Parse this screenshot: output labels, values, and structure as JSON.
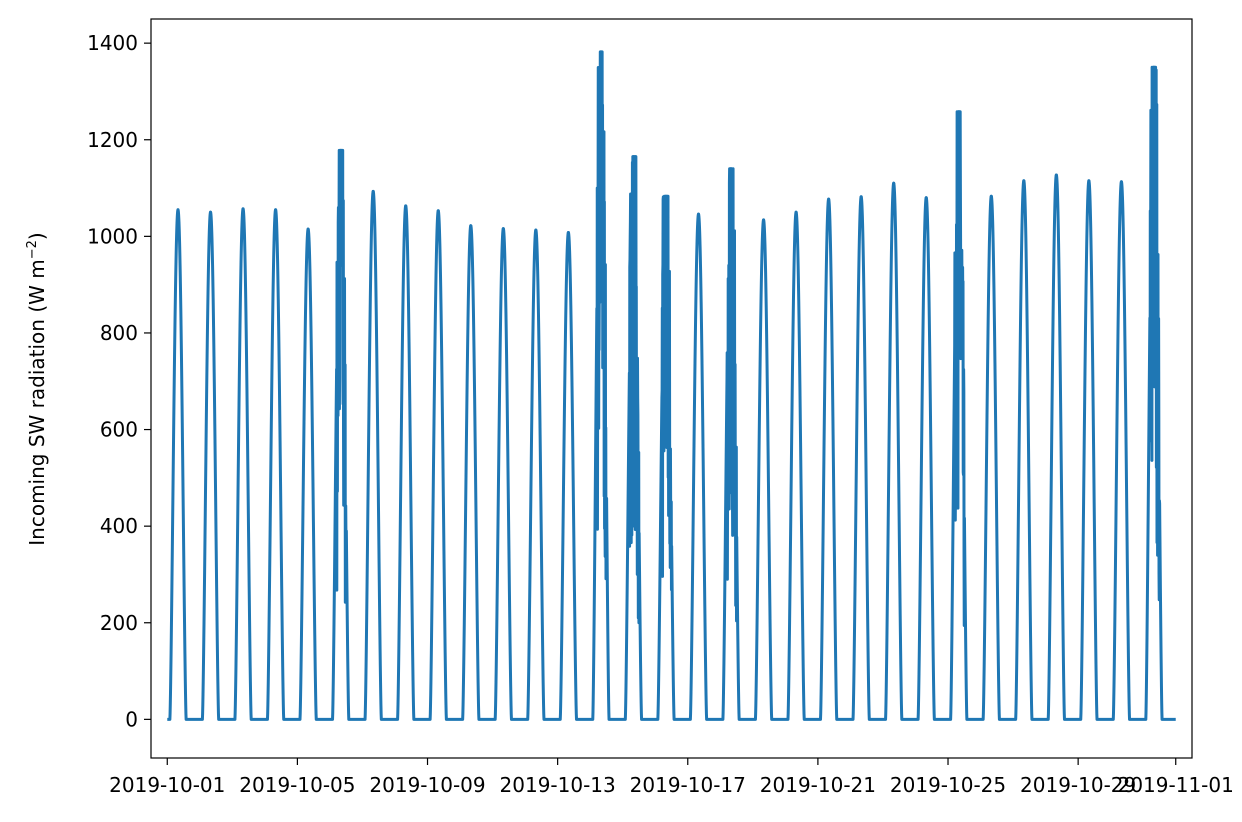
{
  "chart_data": {
    "type": "line",
    "title": "",
    "xlabel": "",
    "ylabel_main": "Incoming SW radiation (W m",
    "ylabel_sup": "−2",
    "ylabel_close": ")",
    "x_ticks": [
      "2019-10-01",
      "2019-10-05",
      "2019-10-09",
      "2019-10-13",
      "2019-10-17",
      "2019-10-21",
      "2019-10-25",
      "2019-10-29",
      "2019-11-01"
    ],
    "y_ticks": [
      0,
      200,
      400,
      600,
      800,
      1000,
      1200,
      1400
    ],
    "xlim": [
      "2019-09-30T12:00",
      "2019-11-01T12:00"
    ],
    "ylim": [
      -80,
      1450
    ],
    "grid": false,
    "series": [
      {
        "color": "#1f77b4",
        "description": "Diurnal cycle: ~0 at night, one peak per day around local noon",
        "daily_peaks": [
          {
            "date": "2019-10-01",
            "peak": 1055
          },
          {
            "date": "2019-10-02",
            "peak": 1050
          },
          {
            "date": "2019-10-03",
            "peak": 1057
          },
          {
            "date": "2019-10-04",
            "peak": 1055
          },
          {
            "date": "2019-10-05",
            "peak": 1015
          },
          {
            "date": "2019-10-06",
            "peak": 1178
          },
          {
            "date": "2019-10-07",
            "peak": 1093
          },
          {
            "date": "2019-10-08",
            "peak": 1063
          },
          {
            "date": "2019-10-09",
            "peak": 1053
          },
          {
            "date": "2019-10-10",
            "peak": 1022
          },
          {
            "date": "2019-10-11",
            "peak": 1016
          },
          {
            "date": "2019-10-12",
            "peak": 1013
          },
          {
            "date": "2019-10-13",
            "peak": 1008
          },
          {
            "date": "2019-10-14",
            "peak": 1382
          },
          {
            "date": "2019-10-15",
            "peak": 1165
          },
          {
            "date": "2019-10-16",
            "peak": 1083
          },
          {
            "date": "2019-10-17",
            "peak": 1046
          },
          {
            "date": "2019-10-18",
            "peak": 1140
          },
          {
            "date": "2019-10-19",
            "peak": 1034
          },
          {
            "date": "2019-10-20",
            "peak": 1050
          },
          {
            "date": "2019-10-21",
            "peak": 1077
          },
          {
            "date": "2019-10-22",
            "peak": 1082
          },
          {
            "date": "2019-10-23",
            "peak": 1110
          },
          {
            "date": "2019-10-24",
            "peak": 1080
          },
          {
            "date": "2019-10-25",
            "peak": 1258
          },
          {
            "date": "2019-10-26",
            "peak": 1083
          },
          {
            "date": "2019-10-27",
            "peak": 1115
          },
          {
            "date": "2019-10-28",
            "peak": 1127
          },
          {
            "date": "2019-10-29",
            "peak": 1115
          },
          {
            "date": "2019-10-30",
            "peak": 1113
          },
          {
            "date": "2019-10-31",
            "peak": 1350
          }
        ]
      }
    ]
  }
}
